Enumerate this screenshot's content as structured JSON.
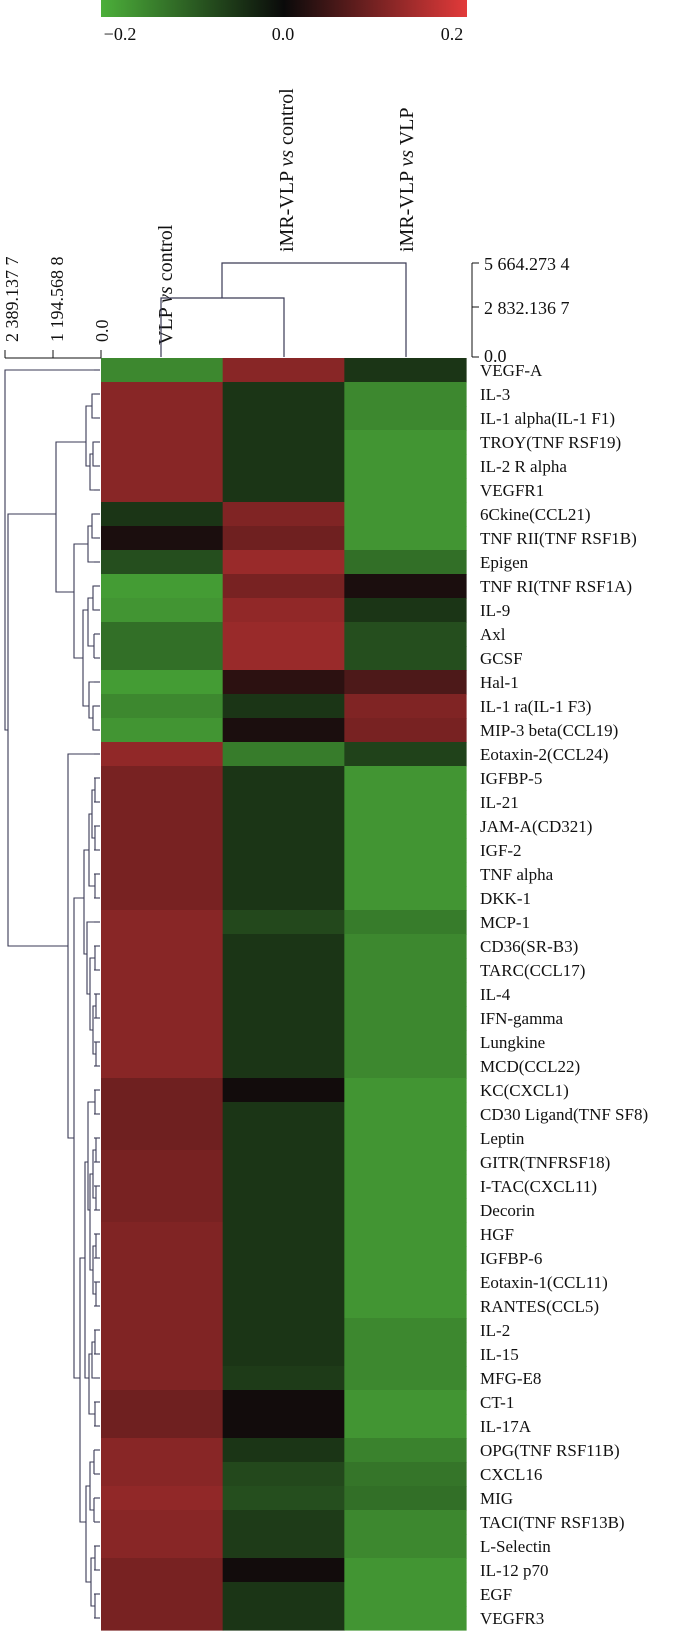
{
  "chart_data": {
    "type": "heatmap",
    "title": "",
    "xlabel": "",
    "ylabel": "",
    "colorbar": {
      "min": -0.2,
      "max": 0.2,
      "ticks": [
        "−0.2",
        "0.0",
        "0.2"
      ],
      "low_color": "#4caf3a",
      "mid_color": "#0a0a0a",
      "high_color": "#e23a3a"
    },
    "columns": [
      "VLP vs control",
      "iMR-VLP vs control",
      "iMR-VLP vs VLP"
    ],
    "column_dendrogram_ticks": [
      "5 664.273 4",
      "2 832.136 7",
      "0.0"
    ],
    "row_dendrogram_ticks": [
      "2 389.137 7",
      "1 194.568 8",
      "0.0"
    ],
    "rows": [
      "VEGF-A",
      "IL-3",
      "IL-1 alpha(IL-1 F1)",
      "TROY(TNF RSF19)",
      "IL-2 R alpha",
      "VEGFR1",
      "6Ckine(CCL21)",
      "TNF RII(TNF RSF1B)",
      "Epigen",
      "TNF RI(TNF RSF1A)",
      "IL-9",
      "Axl",
      "GCSF",
      "Hal-1",
      "IL-1 ra(IL-1 F3)",
      "MIP-3 beta(CCL19)",
      "Eotaxin-2(CCL24)",
      "IGFBP-5",
      "IL-21",
      "JAM-A(CD321)",
      "IGF-2",
      "TNF alpha",
      "DKK-1",
      "MCP-1",
      "CD36(SR-B3)",
      "TARC(CCL17)",
      "IL-4",
      "IFN-gamma",
      "Lungkine",
      "MCD(CCL22)",
      "KC(CXCL1)",
      "CD30 Ligand(TNF SF8)",
      "Leptin",
      "GITR(TNFRSF18)",
      "I-TAC(CXCL11)",
      "Decorin",
      "HGF",
      "IGFBP-6",
      "Eotaxin-1(CCL11)",
      "RANTES(CCL5)",
      "IL-2",
      "IL-15",
      "MFG-E8",
      "CT-1",
      "IL-17A",
      "OPG(TNF RSF11B)",
      "CXCL16",
      "MIG",
      "TACI(TNF RSF13B)",
      "L-Selectin",
      "IL-12 p70",
      "EGF",
      "VEGFR3"
    ],
    "values": [
      [
        -0.14,
        0.15,
        -0.01
      ],
      [
        0.15,
        -0.01,
        -0.14
      ],
      [
        0.15,
        -0.01,
        -0.14
      ],
      [
        0.15,
        -0.01,
        -0.16
      ],
      [
        0.15,
        -0.01,
        -0.16
      ],
      [
        0.15,
        -0.01,
        -0.16
      ],
      [
        -0.01,
        0.14,
        -0.16
      ],
      [
        0.02,
        0.12,
        -0.16
      ],
      [
        -0.05,
        0.17,
        -0.1
      ],
      [
        -0.17,
        0.13,
        0.02
      ],
      [
        -0.16,
        0.16,
        -0.01
      ],
      [
        -0.1,
        0.17,
        -0.05
      ],
      [
        -0.1,
        0.17,
        -0.05
      ],
      [
        -0.17,
        0.04,
        0.08
      ],
      [
        -0.14,
        -0.01,
        0.14
      ],
      [
        -0.16,
        0.02,
        0.13
      ],
      [
        0.16,
        -0.12,
        -0.03
      ],
      [
        0.13,
        -0.01,
        -0.16
      ],
      [
        0.13,
        -0.01,
        -0.16
      ],
      [
        0.13,
        -0.01,
        -0.16
      ],
      [
        0.13,
        -0.01,
        -0.16
      ],
      [
        0.13,
        -0.01,
        -0.16
      ],
      [
        0.13,
        -0.01,
        -0.16
      ],
      [
        0.15,
        -0.04,
        -0.12
      ],
      [
        0.15,
        -0.01,
        -0.14
      ],
      [
        0.15,
        -0.01,
        -0.14
      ],
      [
        0.15,
        -0.01,
        -0.14
      ],
      [
        0.15,
        -0.01,
        -0.14
      ],
      [
        0.15,
        -0.01,
        -0.14
      ],
      [
        0.15,
        -0.01,
        -0.14
      ],
      [
        0.12,
        0.01,
        -0.16
      ],
      [
        0.12,
        -0.01,
        -0.16
      ],
      [
        0.12,
        -0.01,
        -0.16
      ],
      [
        0.13,
        -0.01,
        -0.16
      ],
      [
        0.13,
        -0.01,
        -0.16
      ],
      [
        0.13,
        -0.01,
        -0.16
      ],
      [
        0.14,
        -0.01,
        -0.16
      ],
      [
        0.14,
        -0.01,
        -0.16
      ],
      [
        0.14,
        -0.01,
        -0.16
      ],
      [
        0.14,
        -0.01,
        -0.16
      ],
      [
        0.14,
        -0.01,
        -0.14
      ],
      [
        0.14,
        -0.01,
        -0.14
      ],
      [
        0.14,
        -0.02,
        -0.14
      ],
      [
        0.12,
        0.01,
        -0.16
      ],
      [
        0.12,
        0.01,
        -0.16
      ],
      [
        0.15,
        -0.01,
        -0.13
      ],
      [
        0.15,
        -0.04,
        -0.11
      ],
      [
        0.16,
        -0.05,
        -0.1
      ],
      [
        0.15,
        -0.02,
        -0.14
      ],
      [
        0.15,
        -0.02,
        -0.14
      ],
      [
        0.13,
        0.01,
        -0.16
      ],
      [
        0.13,
        -0.01,
        -0.16
      ],
      [
        0.13,
        -0.01,
        -0.16
      ]
    ]
  }
}
